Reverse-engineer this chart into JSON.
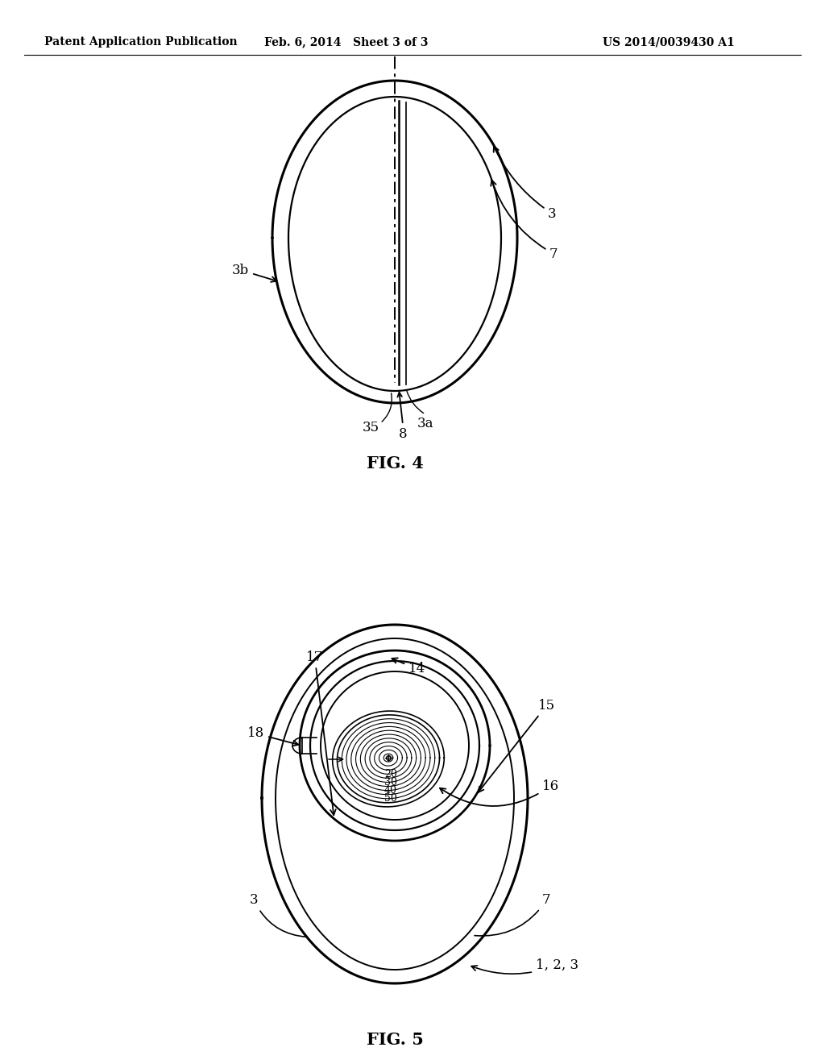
{
  "bg_color": "#ffffff",
  "line_color": "#000000",
  "header_left": "Patent Application Publication",
  "header_mid": "Feb. 6, 2014   Sheet 3 of 3",
  "header_right": "US 2014/0039430 A1",
  "fig4_label": "FIG. 4",
  "fig5_label": "FIG. 5"
}
